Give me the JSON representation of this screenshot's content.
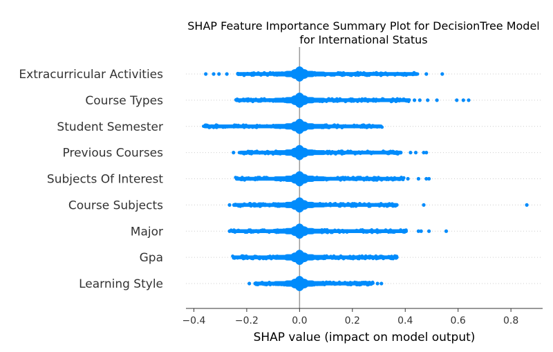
{
  "chart_data": {
    "type": "scatter",
    "subtype": "shap-beeswarm-summary",
    "title_lines": [
      "SHAP Feature Importance Summary Plot for DecisionTree Model",
      "for International Status"
    ],
    "xlabel": "SHAP value (impact on model output)",
    "xlim": [
      -0.43,
      0.92
    ],
    "x_ticks": [
      -0.4,
      -0.2,
      0.0,
      0.2,
      0.4,
      0.6,
      0.8
    ],
    "x_tick_labels": [
      "−0.4",
      "−0.2",
      "0.0",
      "0.2",
      "0.4",
      "0.6",
      "0.8"
    ],
    "point_color": "#008bfb",
    "zero_line_color": "#999999",
    "row_guide_color": "#cccccc",
    "features": [
      {
        "name": "Extracurricular Activities",
        "dense_min": -0.24,
        "dense_max": 0.45,
        "outliers": [
          -0.355,
          -0.325,
          -0.305,
          -0.275,
          0.48,
          0.54
        ]
      },
      {
        "name": "Course Types",
        "dense_min": -0.245,
        "dense_max": 0.42,
        "outliers": [
          0.435,
          0.455,
          0.485,
          0.52,
          0.595,
          0.62,
          0.64
        ]
      },
      {
        "name": "Student Semester",
        "dense_min": -0.365,
        "dense_max": 0.315,
        "outliers": []
      },
      {
        "name": "Previous Courses",
        "dense_min": -0.23,
        "dense_max": 0.39,
        "outliers": [
          -0.25,
          0.42,
          0.44,
          0.47,
          0.48
        ]
      },
      {
        "name": "Subjects Of Interest",
        "dense_min": -0.245,
        "dense_max": 0.395,
        "outliers": [
          0.41,
          0.45,
          0.48,
          0.49
        ]
      },
      {
        "name": "Course Subjects",
        "dense_min": -0.255,
        "dense_max": 0.375,
        "outliers": [
          -0.265,
          0.47,
          0.86
        ]
      },
      {
        "name": "Major",
        "dense_min": -0.26,
        "dense_max": 0.41,
        "outliers": [
          -0.265,
          0.45,
          0.46,
          0.49,
          0.555
        ]
      },
      {
        "name": "Gpa",
        "dense_min": -0.255,
        "dense_max": 0.375,
        "outliers": []
      },
      {
        "name": "Learning Style",
        "dense_min": -0.175,
        "dense_max": 0.28,
        "outliers": [
          -0.19,
          0.295,
          0.31
        ]
      }
    ]
  }
}
